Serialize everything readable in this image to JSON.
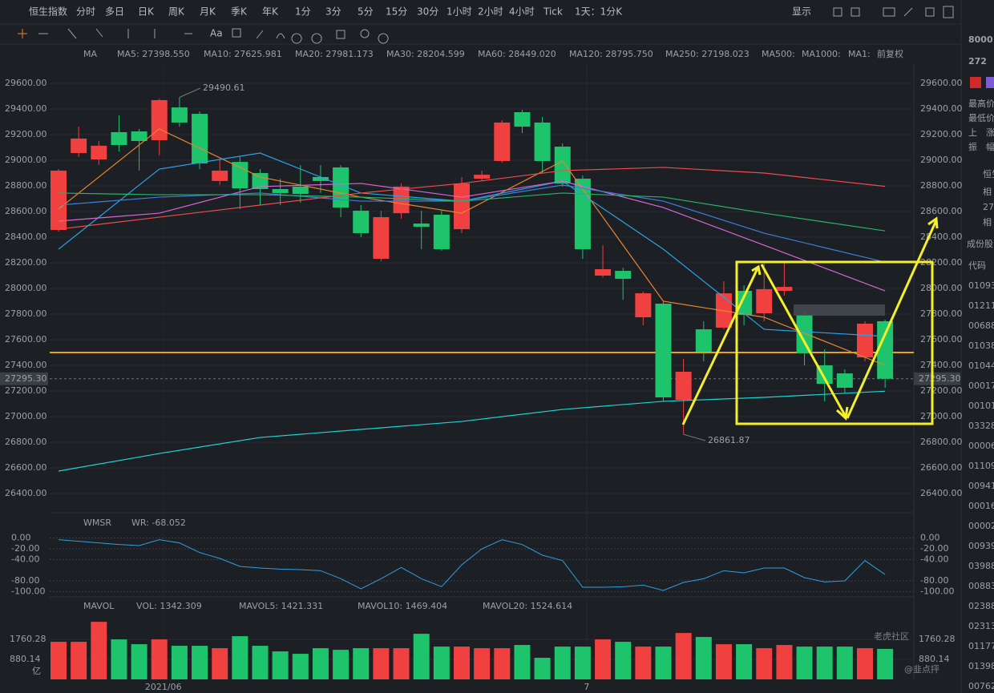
{
  "toolbar": {
    "tabs": [
      "恒生指数",
      "分时",
      "多日",
      "日K",
      "周K",
      "月K",
      "季K",
      "年K",
      "1分",
      "3分",
      "5分",
      "15分",
      "30分",
      "1小时",
      "2小时",
      "4小时",
      "Tick",
      "1天：1分K"
    ],
    "active": "日K",
    "display": "显示",
    "text_tool": "Aa"
  },
  "indicator_label": "MA",
  "adjust": "前复权",
  "chart_data": {
    "type": "candlestick",
    "open": [
      28456,
      29056,
      29006,
      29219,
      29225,
      29156,
      29412,
      29362,
      28838,
      28987,
      28900,
      28775,
      28794,
      28869,
      28944,
      28606,
      28231,
      28587,
      28506,
      28575,
      28462,
      28856,
      28994,
      29375,
      29294,
      29106,
      28856,
      28100,
      28137,
      27775,
      27881,
      27131,
      27681,
      27694,
      27981,
      27806,
      27981,
      27794,
      27400,
      27337,
      27462,
      27744
    ],
    "high": [
      28931,
      29262,
      29150,
      29350,
      29244,
      29480,
      29490.61,
      29381,
      29006,
      29025,
      28931,
      28856,
      28962,
      28962,
      28962,
      28650,
      28606,
      28819,
      28606,
      28606,
      28869,
      28919,
      29312,
      29394,
      29337,
      29131,
      28881,
      28337,
      28162,
      27975,
      27900,
      27450,
      27744,
      28056,
      28025,
      28194,
      28200,
      27819,
      27525,
      27369,
      27744,
      27756
    ],
    "low": [
      28444,
      29025,
      28963,
      29069,
      28919,
      29037,
      29262,
      28931,
      28806,
      28619,
      28650,
      28650,
      28669,
      28744,
      28556,
      28400,
      28212,
      28544,
      28306,
      28294,
      28431,
      28837,
      28981,
      29212,
      28900,
      28794,
      28231,
      28087,
      27912,
      27712,
      27119,
      26861.87,
      27431,
      27681,
      27712,
      27744,
      27944,
      27400,
      27119,
      27181,
      27431,
      27225
    ],
    "close": [
      28919,
      29169,
      29113,
      29119,
      29150,
      29469,
      29294,
      28975,
      28919,
      28781,
      28775,
      28744,
      28737,
      28838,
      28631,
      28431,
      28556,
      28794,
      28481,
      28306,
      28819,
      28887,
      29294,
      29262,
      28994,
      28819,
      28306,
      28150,
      28075,
      27962,
      27150,
      27350,
      27506,
      27962,
      27794,
      27994,
      28012,
      27494,
      27256,
      27225,
      27725,
      27295.3
    ],
    "up_color": "#f0403f",
    "down_color": "#1ec46c",
    "ylim": [
      26250,
      29750
    ],
    "yticks": [
      {
        "value": 29600,
        "label": "29600.00"
      },
      {
        "value": 29400,
        "label": "29400.00"
      },
      {
        "value": 29200,
        "label": "29200.00"
      },
      {
        "value": 29000,
        "label": "29000.00"
      },
      {
        "value": 28800,
        "label": "28800.00"
      },
      {
        "value": 28600,
        "label": "28600.00"
      },
      {
        "value": 28400,
        "label": "28400.00"
      },
      {
        "value": 28200,
        "label": "28200.00"
      },
      {
        "value": 28000,
        "label": "28000.00"
      },
      {
        "value": 27800,
        "label": "27800.00"
      },
      {
        "value": 27600,
        "label": "27600.00"
      },
      {
        "value": 27400,
        "label": "27400.00"
      },
      {
        "value": 27200,
        "label": "27200.00"
      },
      {
        "value": 27000,
        "label": "27000.00"
      },
      {
        "value": 26800,
        "label": "26800.00"
      },
      {
        "value": 26600,
        "label": "26600.00"
      },
      {
        "value": 26400,
        "label": "26400.00"
      }
    ],
    "xticks": [
      {
        "value": 5.2,
        "label": "2021/06"
      },
      {
        "value": 26.2,
        "label": "7"
      }
    ],
    "high_mark": {
      "index": 6,
      "value": 29490.61
    },
    "low_mark": {
      "index": 31,
      "value": 26861.87
    },
    "last_price": {
      "value": 27295.3,
      "label": "27295.30"
    },
    "hline": 27500,
    "ma_x": [
      0,
      5,
      10,
      15,
      20,
      25,
      30,
      35,
      41
    ],
    "moving_averages": [
      {
        "label": "MA5: 27398.550",
        "color": "#e8862a",
        "values": [
          28619,
          29244,
          28869,
          28712,
          28587,
          28994,
          27900,
          27775,
          27400
        ]
      },
      {
        "label": "MA10: 27625.981",
        "color": "#29a3e8",
        "values": [
          28306,
          28931,
          29056,
          28744,
          28681,
          28837,
          28306,
          27681,
          27626
        ]
      },
      {
        "label": "MA20: 27981.173",
        "color": "#d966d6",
        "values": [
          28525,
          28587,
          28794,
          28819,
          28712,
          28837,
          28631,
          28337,
          27981
        ]
      },
      {
        "label": "MA30: 28204.599",
        "color": "#3d7fe0",
        "values": [
          28650,
          28712,
          28744,
          28681,
          28681,
          28806,
          28681,
          28431,
          28205
        ]
      },
      {
        "label": "MA60: 28449.020",
        "color": "#27b36a",
        "values": [
          28744,
          28731,
          28731,
          28712,
          28681,
          28744,
          28712,
          28587,
          28449
        ]
      },
      {
        "label": "MA120: 28795.750",
        "color": "#f04c4c",
        "values": [
          28462,
          28556,
          28650,
          28744,
          28819,
          28919,
          28944,
          28900,
          28796
        ]
      },
      {
        "label": "MA250: 27198.023",
        "color": "#1fd3d3",
        "values": [
          26575,
          26712,
          26837,
          26900,
          26962,
          27056,
          27119,
          27150,
          27198
        ]
      }
    ],
    "inactive_ma_labels": [
      "MA500:",
      "MA1000:",
      "MA1:"
    ]
  },
  "wr_panel": {
    "type": "line",
    "name": "WMSR",
    "label": "WR: -68.052",
    "color": "#2f9fe0",
    "values": [
      -3,
      -6,
      -9,
      -12,
      -14,
      -3,
      -9,
      -27,
      -38,
      -53,
      -56,
      -58,
      -59,
      -61,
      -76,
      -95,
      -76,
      -55,
      -76,
      -91,
      -50,
      -20,
      -3,
      -12,
      -32,
      -42,
      -92,
      -92,
      -91,
      -88,
      -98,
      -83,
      -76,
      -61,
      -65,
      -56,
      -56,
      -74,
      -82,
      -80,
      -42,
      -68.052
    ],
    "ylim": [
      -110,
      10
    ],
    "yticks": [
      {
        "value": 0,
        "label": "0.00"
      },
      {
        "value": -20,
        "label": "-20.00"
      },
      {
        "value": -40,
        "label": "-40.00"
      },
      {
        "value": -80,
        "label": "-80.00"
      },
      {
        "value": -100,
        "label": "-100.00"
      }
    ]
  },
  "vol_panel": {
    "type": "bar",
    "name": "MAVOL",
    "unit": "亿",
    "legend": [
      {
        "label": "VOL: 1342.309",
        "color": "#f0403f"
      },
      {
        "label": "MAVOL5: 1421.331",
        "color": "#e8862a"
      },
      {
        "label": "MAVOL10: 1469.404",
        "color": "#29a3e8"
      },
      {
        "label": "MAVOL20: 1524.614",
        "color": "#d966d6"
      }
    ],
    "values": [
      1654,
      1654,
      2534,
      1760,
      1549,
      1760,
      1478,
      1478,
      1373,
      1901,
      1478,
      1232,
      1126,
      1373,
      1302,
      1373,
      1373,
      1373,
      2006,
      1443,
      1443,
      1373,
      1373,
      1514,
      950,
      1443,
      1443,
      1760,
      1654,
      1443,
      1443,
      2042,
      1866,
      1549,
      1549,
      1373,
      1514,
      1443,
      1443,
      1443,
      1373,
      1342.309
    ],
    "ylim": [
      0,
      2750
    ],
    "yticks": [
      1760.28,
      880.14
    ]
  },
  "sidebar": {
    "code": "8000",
    "price": "272",
    "stats": [
      "最高价",
      "最低价",
      "上　涨",
      "振　幅"
    ],
    "rows": [
      "恒生",
      "相",
      "27",
      "相"
    ],
    "section": "成份股",
    "column": "代码",
    "codes": [
      "01093",
      "01211",
      "00688",
      "01038",
      "01044",
      "00017",
      "00101",
      "03328",
      "00006",
      "01109",
      "00941",
      "00016",
      "00002",
      "00939",
      "03988",
      "00883",
      "02388",
      "02313",
      "01177",
      "01398",
      "00762"
    ]
  },
  "watermark": {
    "brand": "老虎社区",
    "user": "@韭点抨"
  }
}
